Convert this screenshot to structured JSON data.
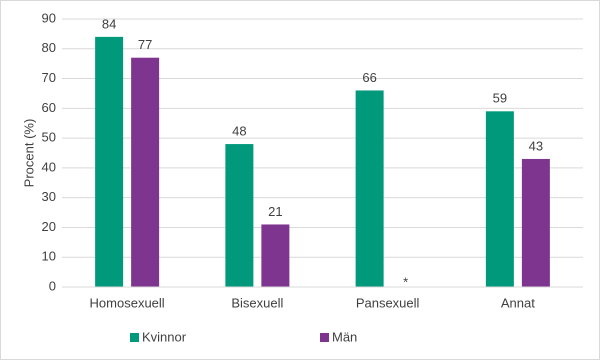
{
  "chart_data": {
    "type": "bar",
    "y_label": "Procent (%)",
    "categories": [
      "Homosexuell",
      "Bisexuell",
      "Pansexuell",
      "Annat"
    ],
    "series": [
      {
        "name": "Kvinnor",
        "color": "#00997b",
        "values": [
          84,
          48,
          66,
          59
        ]
      },
      {
        "name": "Män",
        "color": "#7e358f",
        "values": [
          77,
          21,
          null,
          43
        ],
        "value_labels": [
          "77",
          "21",
          "*",
          "43"
        ]
      }
    ],
    "ylim": [
      0,
      90
    ],
    "yticks": [
      0,
      10,
      20,
      30,
      40,
      50,
      60,
      70,
      80,
      90
    ],
    "grid": true,
    "legend": "bottom"
  }
}
